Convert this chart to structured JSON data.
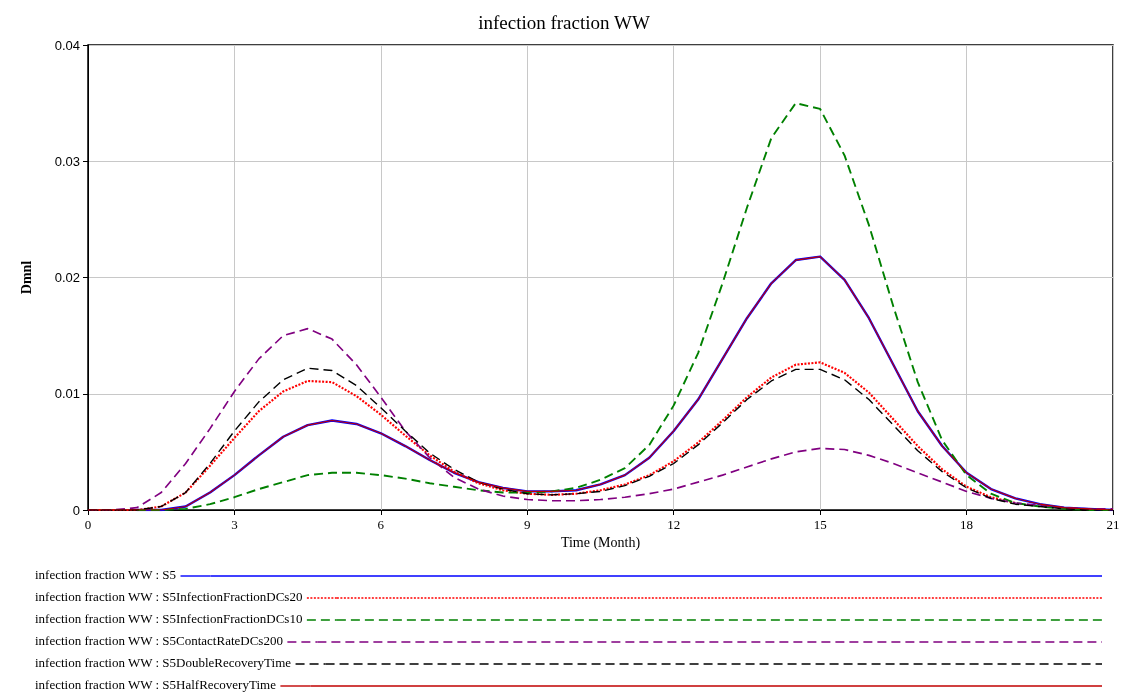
{
  "chart_data": {
    "type": "line",
    "title": "infection fraction WW",
    "xlabel": "Time (Month)",
    "ylabel": "Dmnl",
    "x": [
      0,
      0.5,
      1,
      1.5,
      2,
      2.5,
      3,
      3.5,
      4,
      4.5,
      5,
      5.5,
      6,
      6.5,
      7,
      7.5,
      8,
      8.5,
      9,
      9.5,
      10,
      10.5,
      11,
      11.5,
      12,
      12.5,
      13,
      13.5,
      14,
      14.5,
      15,
      15.5,
      16,
      16.5,
      17,
      17.5,
      18,
      18.5,
      19,
      19.5,
      20,
      20.5,
      21
    ],
    "xlim": [
      0,
      21
    ],
    "xticks": [
      0,
      3,
      6,
      9,
      12,
      15,
      18,
      21
    ],
    "ylim": [
      0,
      0.04
    ],
    "yticks": [
      0,
      0.01,
      0.02,
      0.03,
      0.04
    ],
    "grid": true,
    "legend": "bottom",
    "series": [
      {
        "name": "infection fraction WW : S5",
        "color": "#0000ff",
        "line_style": "solid",
        "values": [
          null,
          null,
          0,
          0,
          0.0003,
          0.0015,
          0.003,
          0.0047,
          0.0063,
          0.0073,
          0.0077,
          0.0074,
          0.0066,
          0.0055,
          0.0043,
          0.0032,
          0.0024,
          0.0019,
          0.0016,
          0.0016,
          0.0017,
          0.0022,
          0.003,
          0.0045,
          0.0068,
          0.0095,
          0.013,
          0.0165,
          0.0195,
          0.0215,
          0.0218,
          0.0198,
          0.0165,
          0.0125,
          0.0085,
          0.0055,
          0.0032,
          0.0018,
          0.001,
          0.0005,
          0.0002,
          0.0001,
          0
        ]
      },
      {
        "name": "infection fraction WW : S5InfectionFractionDCs20",
        "color": "#ff0000",
        "line_style": "dotted",
        "values": [
          0,
          0,
          0,
          0.0003,
          0.0015,
          0.0038,
          0.0062,
          0.0085,
          0.0102,
          0.0111,
          0.011,
          0.0098,
          0.0082,
          0.0064,
          0.0047,
          0.0033,
          0.0023,
          0.0017,
          0.0014,
          0.0013,
          0.0014,
          0.0017,
          0.0022,
          0.003,
          0.0042,
          0.0058,
          0.0077,
          0.0097,
          0.0114,
          0.0125,
          0.0127,
          0.0118,
          0.0101,
          0.0078,
          0.0055,
          0.0035,
          0.002,
          0.0011,
          0.0006,
          null,
          null,
          null,
          null
        ]
      },
      {
        "name": "infection fraction WW : S5InfectionFractionDCs10",
        "color": "#008000",
        "line_style": "dashed",
        "values": [
          null,
          null,
          0,
          0,
          0.0001,
          0.0005,
          0.0011,
          0.0018,
          0.0024,
          0.003,
          0.0032,
          0.0032,
          0.003,
          0.0027,
          0.0023,
          0.002,
          0.0017,
          0.0015,
          0.0015,
          0.0016,
          0.0019,
          0.0026,
          0.0036,
          0.0056,
          0.009,
          0.0135,
          0.0195,
          0.026,
          0.032,
          0.035,
          0.0345,
          0.0305,
          0.0245,
          0.0175,
          0.011,
          0.006,
          0.003,
          0.0014,
          0.0006,
          0.0003,
          0.0001,
          0,
          0
        ]
      },
      {
        "name": "infection fraction WW : S5ContactRateDCs200",
        "color": "#800080",
        "line_style": "dashed",
        "values": [
          0,
          0,
          0.0002,
          0.0015,
          0.004,
          0.007,
          0.0102,
          0.013,
          0.015,
          0.0156,
          0.0147,
          0.0125,
          0.0097,
          0.0068,
          0.0045,
          0.0028,
          0.0018,
          0.0012,
          0.0009,
          0.0008,
          0.0008,
          0.0009,
          0.0011,
          0.0014,
          0.0018,
          0.0024,
          0.003,
          0.0037,
          0.0044,
          0.005,
          0.0053,
          0.0052,
          0.0047,
          0.004,
          0.0032,
          0.0024,
          0.0016,
          0.001,
          0.0006,
          0.0004,
          0.0002,
          0.0001,
          0.0001
        ]
      },
      {
        "name": "infection fraction WW : S5DoubleRecoveryTime",
        "color": "#000000",
        "line_style": "dashed",
        "values": [
          0,
          0,
          0,
          0.0003,
          0.0015,
          0.004,
          0.0068,
          0.0093,
          0.0112,
          0.0122,
          0.012,
          0.0107,
          0.0088,
          0.0068,
          0.0049,
          0.0035,
          0.0024,
          0.0018,
          0.0014,
          0.0013,
          0.0014,
          0.0016,
          0.0021,
          0.0029,
          0.004,
          0.0056,
          0.0075,
          0.0095,
          0.0111,
          0.0121,
          0.0121,
          0.0112,
          0.0095,
          0.0073,
          0.0051,
          0.0033,
          0.0019,
          0.001,
          0.0005,
          0.0003,
          0.0001,
          0,
          0
        ]
      },
      {
        "name": "infection fraction WW : S5HalfRecoveryTime",
        "color": "#c00000",
        "line_style": "solid",
        "values": [
          0,
          0,
          0,
          0,
          0.0003,
          0.0015,
          0.003,
          0.0047,
          0.0063,
          0.0073,
          0.0077,
          0.0074,
          0.0066,
          0.0055,
          0.0043,
          0.0032,
          0.0024,
          0.0019,
          0.0016,
          0.0016,
          0.0017,
          0.0022,
          0.003,
          0.0045,
          0.0068,
          0.0095,
          0.013,
          0.0165,
          0.0195,
          0.0215,
          0.0218,
          0.0198,
          0.0165,
          0.0125,
          0.0085,
          0.0055,
          0.0032,
          0.0018,
          0.001,
          0.0005,
          0.0002,
          0.0001,
          0
        ]
      }
    ]
  }
}
